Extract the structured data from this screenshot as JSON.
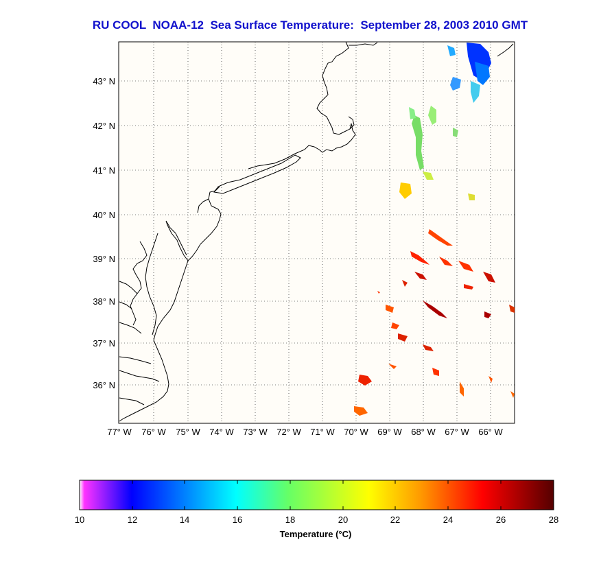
{
  "title": "RU COOL  NOAA-12  Sea Surface Temperature:  September 28, 2003 2010 GMT",
  "map": {
    "lat_labels": [
      "43° N",
      "42° N",
      "41° N",
      "40° N",
      "39° N",
      "38° N",
      "37° N",
      "36° N"
    ],
    "lon_labels": [
      "77° W",
      "76° W",
      "75° W",
      "74° W",
      "73° W",
      "72° W",
      "71° W",
      "70° W",
      "69° W",
      "68° W",
      "67° W",
      "66° W"
    ],
    "background": "#fffdf8"
  },
  "colorbar": {
    "ticks": [
      "10",
      "12",
      "14",
      "16",
      "18",
      "20",
      "22",
      "24",
      "26",
      "28"
    ],
    "label": "Temperature (°C)",
    "colors": [
      "#ff33ff",
      "#0000ff",
      "#00a6ff",
      "#00ffff",
      "#66ff66",
      "#ffff00",
      "#ff9900",
      "#ff0000",
      "#550000"
    ]
  }
}
